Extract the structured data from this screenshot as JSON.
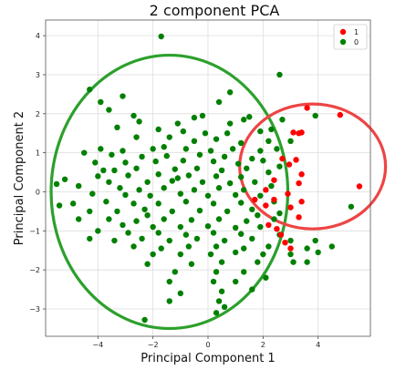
{
  "colors": {
    "class_1": "#ff0000",
    "class_0": "#008000",
    "ellipse_green": "#2ca02c",
    "ellipse_red": "#ee4444",
    "grid": "#dddddd",
    "frame": "#555555"
  },
  "chart_data": {
    "type": "scatter",
    "title": "2 component PCA",
    "xlabel": "Principal Component 1",
    "ylabel": "Principal Component 2",
    "xlim": [
      -5.9,
      5.9
    ],
    "ylim": [
      -3.7,
      4.4
    ],
    "xticks": [
      -4,
      -2,
      0,
      2,
      4
    ],
    "yticks": [
      -3,
      -2,
      -1,
      0,
      1,
      2,
      3,
      4
    ],
    "grid": true,
    "legend_position": "top-right",
    "legend": [
      "1",
      "0"
    ],
    "series": [
      {
        "name": "1",
        "color": "#ff0000",
        "points": [
          [
            3.6,
            2.15
          ],
          [
            4.8,
            1.97
          ],
          [
            3.4,
            1.52
          ],
          [
            3.1,
            1.52
          ],
          [
            3.3,
            1.5
          ],
          [
            2.7,
            0.85
          ],
          [
            3.2,
            0.82
          ],
          [
            2.95,
            0.7
          ],
          [
            3.4,
            0.45
          ],
          [
            2.4,
            0.3
          ],
          [
            3.3,
            0.22
          ],
          [
            5.5,
            0.14
          ],
          [
            2.1,
            0.05
          ],
          [
            2.9,
            -0.05
          ],
          [
            3.4,
            -0.25
          ],
          [
            1.7,
            -0.2
          ],
          [
            2.4,
            -0.2
          ],
          [
            2.1,
            -0.35
          ],
          [
            3.0,
            -0.4
          ],
          [
            3.3,
            -0.65
          ],
          [
            2.2,
            -0.85
          ],
          [
            2.5,
            -0.95
          ],
          [
            2.65,
            -1.1
          ],
          [
            2.8,
            -1.3
          ],
          [
            3.0,
            -1.45
          ]
        ]
      },
      {
        "name": "0",
        "color": "#008000",
        "points": [
          [
            -1.7,
            3.98
          ],
          [
            2.6,
            3.0
          ],
          [
            -4.3,
            2.62
          ],
          [
            0.8,
            2.55
          ],
          [
            -3.1,
            2.45
          ],
          [
            -3.9,
            2.3
          ],
          [
            0.4,
            2.3
          ],
          [
            -3.6,
            2.1
          ],
          [
            -2.7,
            1.95
          ],
          [
            -0.5,
            1.9
          ],
          [
            1.5,
            1.92
          ],
          [
            3.9,
            1.95
          ],
          [
            -2.5,
            1.8
          ],
          [
            -1.1,
            1.75
          ],
          [
            1.3,
            1.85
          ],
          [
            2.7,
            1.85
          ],
          [
            -3.3,
            1.65
          ],
          [
            -1.8,
            1.6
          ],
          [
            -0.9,
            1.55
          ],
          [
            -0.1,
            1.5
          ],
          [
            0.7,
            1.5
          ],
          [
            1.9,
            1.55
          ],
          [
            2.3,
            1.6
          ],
          [
            -2.6,
            1.4
          ],
          [
            -1.4,
            1.4
          ],
          [
            -0.5,
            1.3
          ],
          [
            0.3,
            1.35
          ],
          [
            1.2,
            1.25
          ],
          [
            2.2,
            1.3
          ],
          [
            3.0,
            1.3
          ],
          [
            -3.9,
            1.1
          ],
          [
            -3.1,
            1.05
          ],
          [
            -2.0,
            1.1
          ],
          [
            -0.8,
            1.1
          ],
          [
            0.1,
            1.05
          ],
          [
            0.9,
            1.1
          ],
          [
            1.9,
            1.05
          ],
          [
            2.5,
            1.1
          ],
          [
            -4.5,
            1.0
          ],
          [
            -3.5,
            0.95
          ],
          [
            -2.4,
            0.9
          ],
          [
            -1.5,
            0.92
          ],
          [
            -0.3,
            0.95
          ],
          [
            0.6,
            0.9
          ],
          [
            1.6,
            0.85
          ],
          [
            -4.1,
            0.75
          ],
          [
            -3.0,
            0.75
          ],
          [
            -1.9,
            0.78
          ],
          [
            -0.9,
            0.8
          ],
          [
            0.2,
            0.78
          ],
          [
            1.1,
            0.72
          ],
          [
            2.0,
            0.8
          ],
          [
            -3.4,
            0.55
          ],
          [
            -2.6,
            0.6
          ],
          [
            -1.2,
            0.58
          ],
          [
            -0.4,
            0.6
          ],
          [
            0.5,
            0.55
          ],
          [
            1.4,
            0.6
          ],
          [
            -4.0,
            0.4
          ],
          [
            -2.9,
            0.42
          ],
          [
            -1.8,
            0.45
          ],
          [
            -0.7,
            0.42
          ],
          [
            0.3,
            0.4
          ],
          [
            1.2,
            0.38
          ],
          [
            2.2,
            0.5
          ],
          [
            -5.2,
            0.32
          ],
          [
            -3.6,
            0.25
          ],
          [
            -2.2,
            0.25
          ],
          [
            -1.3,
            0.28
          ],
          [
            -0.2,
            0.25
          ],
          [
            0.8,
            0.22
          ],
          [
            1.7,
            0.25
          ],
          [
            -4.7,
            0.15
          ],
          [
            -3.2,
            0.1
          ],
          [
            -2.5,
            0.05
          ],
          [
            -1.6,
            0.1
          ],
          [
            -0.5,
            0.05
          ],
          [
            0.4,
            0.1
          ],
          [
            1.3,
            0.05
          ],
          [
            2.3,
            0.15
          ],
          [
            -5.5,
            0.2
          ],
          [
            -4.2,
            -0.05
          ],
          [
            -3.0,
            -0.08
          ],
          [
            -2.1,
            -0.1
          ],
          [
            -1.0,
            -0.05
          ],
          [
            0.0,
            -0.1
          ],
          [
            1.0,
            -0.08
          ],
          [
            1.9,
            -0.1
          ],
          [
            -4.9,
            -0.3
          ],
          [
            -3.7,
            -0.25
          ],
          [
            -2.7,
            -0.3
          ],
          [
            -1.8,
            -0.3
          ],
          [
            -0.8,
            -0.25
          ],
          [
            0.2,
            -0.3
          ],
          [
            1.2,
            -0.28
          ],
          [
            2.4,
            -0.25
          ],
          [
            -5.4,
            -0.35
          ],
          [
            -4.3,
            -0.5
          ],
          [
            -3.3,
            -0.5
          ],
          [
            -2.3,
            -0.45
          ],
          [
            -1.3,
            -0.5
          ],
          [
            -0.3,
            -0.48
          ],
          [
            0.7,
            -0.5
          ],
          [
            1.6,
            -0.45
          ],
          [
            -4.7,
            -0.7
          ],
          [
            -3.6,
            -0.7
          ],
          [
            -2.6,
            -0.75
          ],
          [
            -1.6,
            -0.7
          ],
          [
            -0.6,
            -0.72
          ],
          [
            0.4,
            -0.7
          ],
          [
            1.4,
            -0.75
          ],
          [
            2.4,
            -0.7
          ],
          [
            -3.1,
            -0.85
          ],
          [
            -2.0,
            -0.9
          ],
          [
            -1.0,
            -0.9
          ],
          [
            0.0,
            -0.88
          ],
          [
            1.0,
            -0.92
          ],
          [
            1.9,
            -0.9
          ],
          [
            -4.0,
            -1.0
          ],
          [
            -2.9,
            -1.05
          ],
          [
            -1.8,
            -1.05
          ],
          [
            -0.8,
            -1.1
          ],
          [
            0.2,
            -1.05
          ],
          [
            1.2,
            -1.08
          ],
          [
            2.6,
            -1.1
          ],
          [
            -4.3,
            -1.2
          ],
          [
            -3.4,
            -1.25
          ],
          [
            -2.4,
            -1.2
          ],
          [
            -1.4,
            -1.25
          ],
          [
            -0.4,
            -1.2
          ],
          [
            0.6,
            -1.25
          ],
          [
            1.6,
            -1.2
          ],
          [
            3.0,
            -1.25
          ],
          [
            -2.7,
            -1.4
          ],
          [
            -1.7,
            -1.45
          ],
          [
            -0.7,
            -1.4
          ],
          [
            0.3,
            -1.4
          ],
          [
            1.3,
            -1.45
          ],
          [
            2.2,
            -1.4
          ],
          [
            3.6,
            -1.45
          ],
          [
            4.5,
            -1.4
          ],
          [
            -2.0,
            -1.6
          ],
          [
            -1.0,
            -1.6
          ],
          [
            0.1,
            -1.6
          ],
          [
            1.0,
            -1.55
          ],
          [
            2.0,
            -1.6
          ],
          [
            3.0,
            -1.6
          ],
          [
            4.0,
            -1.55
          ],
          [
            -2.2,
            -1.85
          ],
          [
            -0.6,
            -1.85
          ],
          [
            0.5,
            -1.8
          ],
          [
            1.8,
            -1.8
          ],
          [
            3.1,
            -1.8
          ],
          [
            3.6,
            -1.8
          ],
          [
            -1.2,
            -2.05
          ],
          [
            0.3,
            -2.05
          ],
          [
            1.3,
            -2.05
          ],
          [
            -1.4,
            -2.3
          ],
          [
            0.2,
            -2.3
          ],
          [
            1.0,
            -2.3
          ],
          [
            2.1,
            -2.2
          ],
          [
            -1.0,
            -2.6
          ],
          [
            0.5,
            -2.55
          ],
          [
            1.6,
            -2.5
          ],
          [
            -1.4,
            -2.8
          ],
          [
            0.4,
            -2.8
          ],
          [
            0.6,
            -2.95
          ],
          [
            0.3,
            -3.1
          ],
          [
            -2.3,
            -3.28
          ],
          [
            5.2,
            -0.38
          ],
          [
            -0.2,
            1.95
          ],
          [
            0.8,
            1.75
          ],
          [
            -1.6,
            1.15
          ],
          [
            2.6,
            0.65
          ],
          [
            -2.2,
            -0.6
          ],
          [
            1.8,
            -0.6
          ],
          [
            -3.8,
            0.55
          ],
          [
            -1.1,
            0.35
          ],
          [
            2.6,
            -0.55
          ],
          [
            3.9,
            -1.25
          ]
        ]
      }
    ],
    "annotations": [
      {
        "type": "ellipse",
        "color": "#2ca02c",
        "center": [
          -1.4,
          0.0
        ],
        "rx": 4.3,
        "ry": 3.5
      },
      {
        "type": "ellipse",
        "color": "#ee4444",
        "center": [
          3.8,
          0.65
        ],
        "rx": 2.65,
        "ry": 1.6
      }
    ]
  }
}
